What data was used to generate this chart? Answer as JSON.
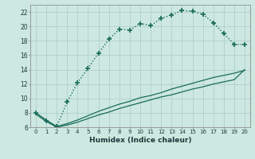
{
  "xlabel": "Humidex (Indice chaleur)",
  "ylabel": "",
  "bg_color": "#cce8e0",
  "grid_color": "#b0d0cc",
  "line_color": "#1a6b5a",
  "xlim": [
    -0.5,
    20.5
  ],
  "ylim": [
    6,
    23
  ],
  "xticks": [
    0,
    1,
    2,
    3,
    4,
    5,
    6,
    7,
    8,
    9,
    10,
    11,
    12,
    13,
    14,
    15,
    16,
    17,
    18,
    19,
    20
  ],
  "yticks": [
    6,
    8,
    10,
    12,
    14,
    16,
    18,
    20,
    22
  ],
  "line1_x": [
    0,
    1,
    2,
    3,
    4,
    5,
    6,
    7,
    8,
    9,
    10,
    11,
    12,
    13,
    14,
    15,
    16,
    17,
    18,
    19,
    20
  ],
  "line1_y": [
    8.0,
    6.9,
    6.1,
    9.5,
    12.2,
    14.2,
    16.3,
    18.2,
    19.6,
    19.5,
    20.4,
    20.1,
    21.1,
    21.6,
    22.2,
    22.1,
    21.7,
    20.5,
    19.0,
    17.5,
    17.5
  ],
  "line2_x": [
    0,
    1,
    2,
    3,
    4,
    5,
    6,
    7,
    8,
    9,
    10,
    11,
    12,
    13,
    14,
    15,
    16,
    17,
    18,
    19,
    20
  ],
  "line2_y": [
    8.0,
    7.0,
    6.1,
    6.5,
    7.0,
    7.6,
    8.2,
    8.7,
    9.2,
    9.6,
    10.1,
    10.4,
    10.8,
    11.3,
    11.7,
    12.1,
    12.5,
    12.9,
    13.2,
    13.5,
    13.9
  ],
  "line3_x": [
    0,
    1,
    2,
    3,
    4,
    5,
    6,
    7,
    8,
    9,
    10,
    11,
    12,
    13,
    14,
    15,
    16,
    17,
    18,
    19,
    20
  ],
  "line3_y": [
    7.8,
    6.8,
    6.0,
    6.3,
    6.7,
    7.2,
    7.7,
    8.1,
    8.6,
    9.0,
    9.4,
    9.8,
    10.2,
    10.5,
    10.9,
    11.3,
    11.6,
    12.0,
    12.3,
    12.6,
    14.0
  ]
}
